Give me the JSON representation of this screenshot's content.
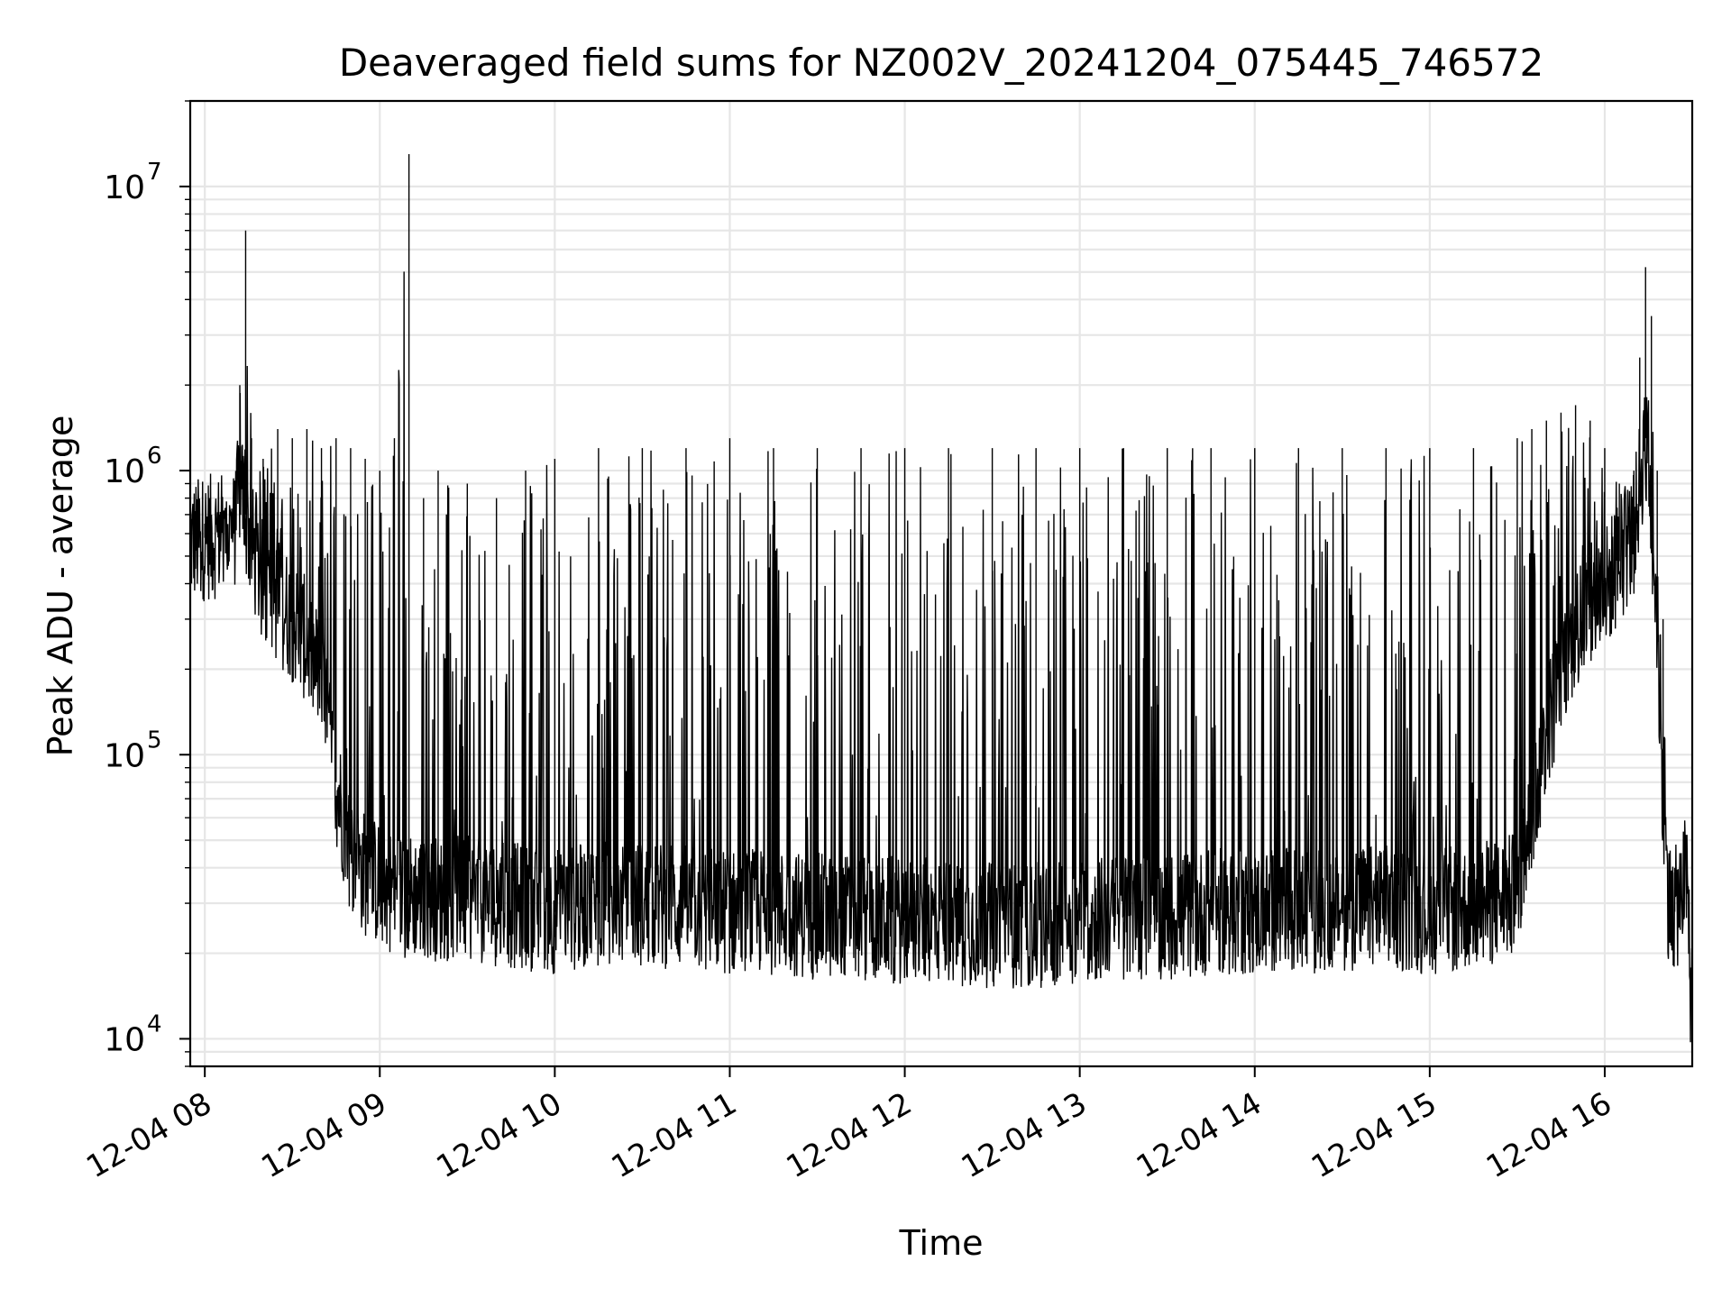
{
  "chart_data": {
    "type": "line",
    "title": "Deaveraged field sums for NZ002V_20241204_075445_746572",
    "xlabel": "Time",
    "ylabel": "Peak ADU - average",
    "x_tick_labels": [
      "12-04 08",
      "12-04 09",
      "12-04 10",
      "12-04 11",
      "12-04 12",
      "12-04 13",
      "12-04 14",
      "12-04 15",
      "12-04 16"
    ],
    "y_tick_labels": [
      {
        "base": "10",
        "exp": "4"
      },
      {
        "base": "10",
        "exp": "5"
      },
      {
        "base": "10",
        "exp": "6"
      },
      {
        "base": "10",
        "exp": "7"
      }
    ],
    "yscale": "log",
    "xlim": [
      "2024-12-04 07:55",
      "2024-12-04 16:30"
    ],
    "ylim": [
      8000,
      20000000
    ],
    "grid": true,
    "line_color": "#000000",
    "series": [
      {
        "description_points": "Sampled envelope of the dense time series: [time, baseline value, spike peak value]",
        "x": [
          "07:55",
          "08:00",
          "08:05",
          "08:10",
          "08:12",
          "08:14",
          "08:16",
          "08:20",
          "08:25",
          "08:30",
          "08:35",
          "08:40",
          "08:45",
          "08:50",
          "08:55",
          "09:00",
          "09:05",
          "09:10",
          "09:15",
          "09:20",
          "09:30",
          "09:40",
          "09:50",
          "10:00",
          "10:15",
          "10:30",
          "10:45",
          "11:00",
          "11:15",
          "11:30",
          "11:45",
          "12:00",
          "12:15",
          "12:30",
          "12:45",
          "13:00",
          "13:15",
          "13:30",
          "13:45",
          "14:00",
          "14:15",
          "14:30",
          "14:45",
          "15:00",
          "15:15",
          "15:30",
          "15:35",
          "15:40",
          "15:45",
          "15:50",
          "15:55",
          "16:00",
          "16:05",
          "16:10",
          "16:12",
          "16:14",
          "16:16",
          "16:18",
          "16:20",
          "16:22",
          "16:24",
          "16:26",
          "16:28",
          "16:30"
        ],
        "baseline": [
          560000,
          580000,
          590000,
          600000,
          900000,
          700000,
          550000,
          400000,
          350000,
          300000,
          250000,
          180000,
          80000,
          45000,
          38000,
          35000,
          33000,
          32000,
          32000,
          31000,
          31000,
          30000,
          29000,
          28000,
          30000,
          30000,
          29000,
          28000,
          28000,
          27000,
          27000,
          26000,
          26000,
          25000,
          25000,
          26000,
          27000,
          27000,
          28000,
          28000,
          28000,
          29000,
          29000,
          28000,
          29000,
          32000,
          60000,
          120000,
          200000,
          280000,
          330000,
          380000,
          480000,
          600000,
          900000,
          1300000,
          700000,
          300000,
          60000,
          30000,
          28000,
          32000,
          38000,
          11000
        ],
        "peaks": [
          700000,
          650000,
          700000,
          900000,
          2000000,
          7000000,
          1300000,
          1100000,
          1400000,
          1300000,
          1400000,
          1200000,
          1300000,
          1200000,
          1100000,
          1000000,
          1300000,
          13000000,
          800000,
          1000000,
          900000,
          800000,
          1000000,
          1100000,
          1200000,
          1200000,
          1200000,
          1300000,
          1200000,
          1200000,
          1200000,
          1200000,
          1200000,
          1200000,
          1200000,
          1200000,
          1200000,
          1200000,
          1200000,
          1200000,
          1200000,
          1200000,
          1200000,
          1200000,
          1200000,
          1300000,
          1400000,
          1500000,
          1600000,
          1700000,
          1500000,
          1200000,
          900000,
          1000000,
          2500000,
          5200000,
          3500000,
          1000000,
          300000,
          45000,
          40000,
          45000,
          50000,
          40000
        ]
      }
    ]
  }
}
